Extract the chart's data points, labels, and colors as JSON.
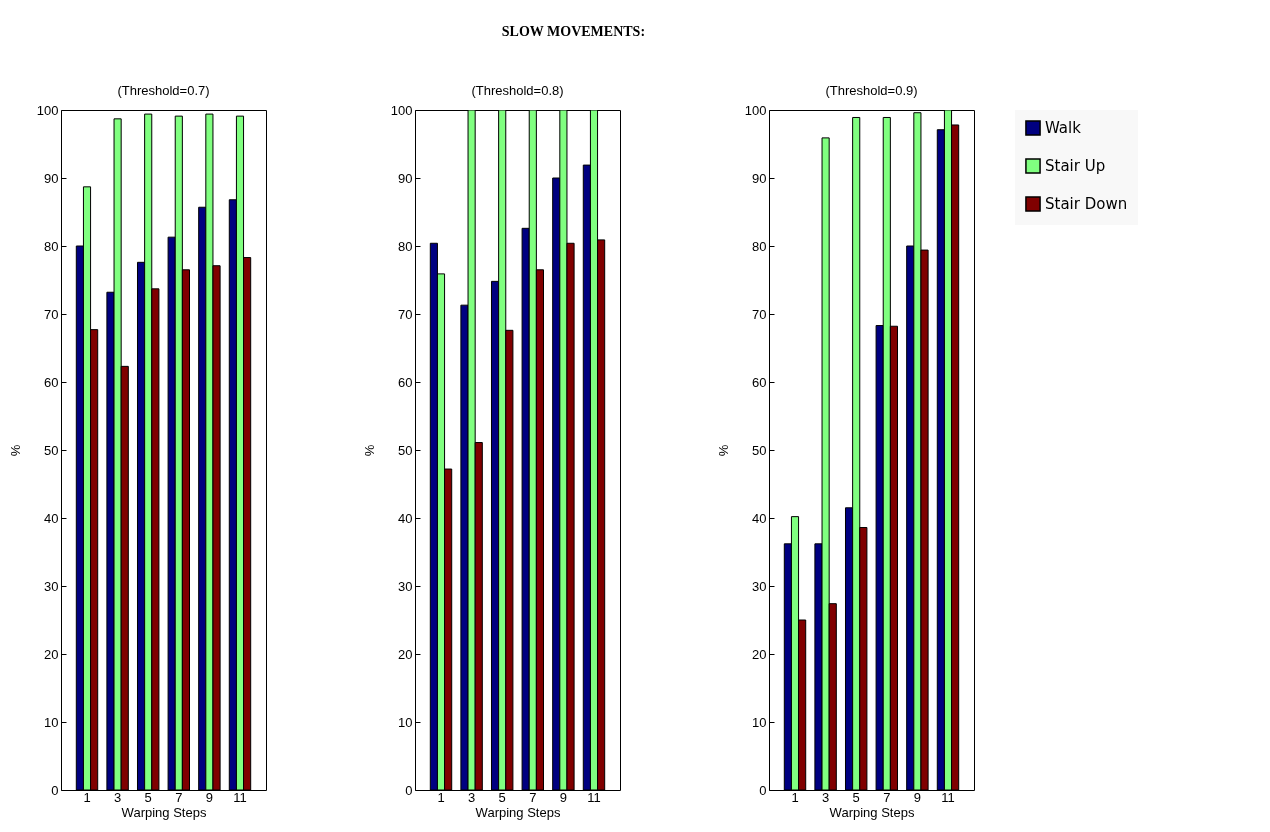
{
  "chart_data": [
    {
      "type": "bar",
      "title": "(Threshold=0.7)",
      "annotations": [
        "SLOW MOVEMENTS:"
      ],
      "xlabel": "Warping Steps",
      "ylabel": "%",
      "categories": [
        "1",
        "3",
        "5",
        "7",
        "9",
        "11"
      ],
      "ylim": [
        0,
        100
      ],
      "yticks": [
        0,
        10,
        20,
        30,
        40,
        50,
        60,
        70,
        80,
        90,
        100
      ],
      "legend": "top right",
      "series": [
        {
          "color": "#000080",
          "values": [
            80,
            73.2,
            77.6,
            81.3,
            85.7,
            86.8
          ]
        },
        {
          "color": "#80ff80",
          "values": [
            88.7,
            98.7,
            99.4,
            99.1,
            99.4,
            99.1
          ]
        },
        {
          "color": "#800000",
          "values": [
            67.7,
            62.3,
            73.7,
            76.5,
            77.1,
            78.3
          ]
        }
      ]
    },
    {
      "type": "bar",
      "title": "(Threshold=0.8)",
      "xlabel": "Warping Steps",
      "ylabel": "%",
      "categories": [
        "1",
        "3",
        "5",
        "7",
        "9",
        "11"
      ],
      "ylim": [
        0,
        100
      ],
      "yticks": [
        0,
        10,
        20,
        30,
        40,
        50,
        60,
        70,
        80,
        90,
        100
      ],
      "legend": "top right",
      "series": [
        {
          "color": "#000080",
          "values": [
            80.4,
            71.3,
            74.8,
            82.6,
            90,
            91.9
          ]
        },
        {
          "color": "#80ff80",
          "values": [
            75.9,
            100,
            100,
            100,
            100,
            100
          ]
        },
        {
          "color": "#800000",
          "values": [
            47.2,
            51.1,
            67.6,
            76.5,
            80.4,
            80.9
          ]
        }
      ]
    },
    {
      "type": "bar",
      "title": "(Threshold=0.9)",
      "xlabel": "Warping Steps",
      "ylabel": "%",
      "categories": [
        "1",
        "3",
        "5",
        "7",
        "9",
        "11"
      ],
      "ylim": [
        0,
        100
      ],
      "yticks": [
        0,
        10,
        20,
        30,
        40,
        50,
        60,
        70,
        80,
        90,
        100
      ],
      "legend": "top right",
      "series": [
        {
          "name": "Walk",
          "color": "#000080",
          "values": [
            36.2,
            36.2,
            41.5,
            68.3,
            80,
            97.1
          ]
        },
        {
          "name": "Stair Up",
          "color": "#80ff80",
          "values": [
            40.2,
            95.9,
            98.9,
            98.9,
            99.6,
            100
          ]
        },
        {
          "name": "Stair Down",
          "color": "#800000",
          "values": [
            25,
            27.4,
            38.6,
            68.2,
            79.4,
            97.8
          ]
        }
      ]
    }
  ]
}
